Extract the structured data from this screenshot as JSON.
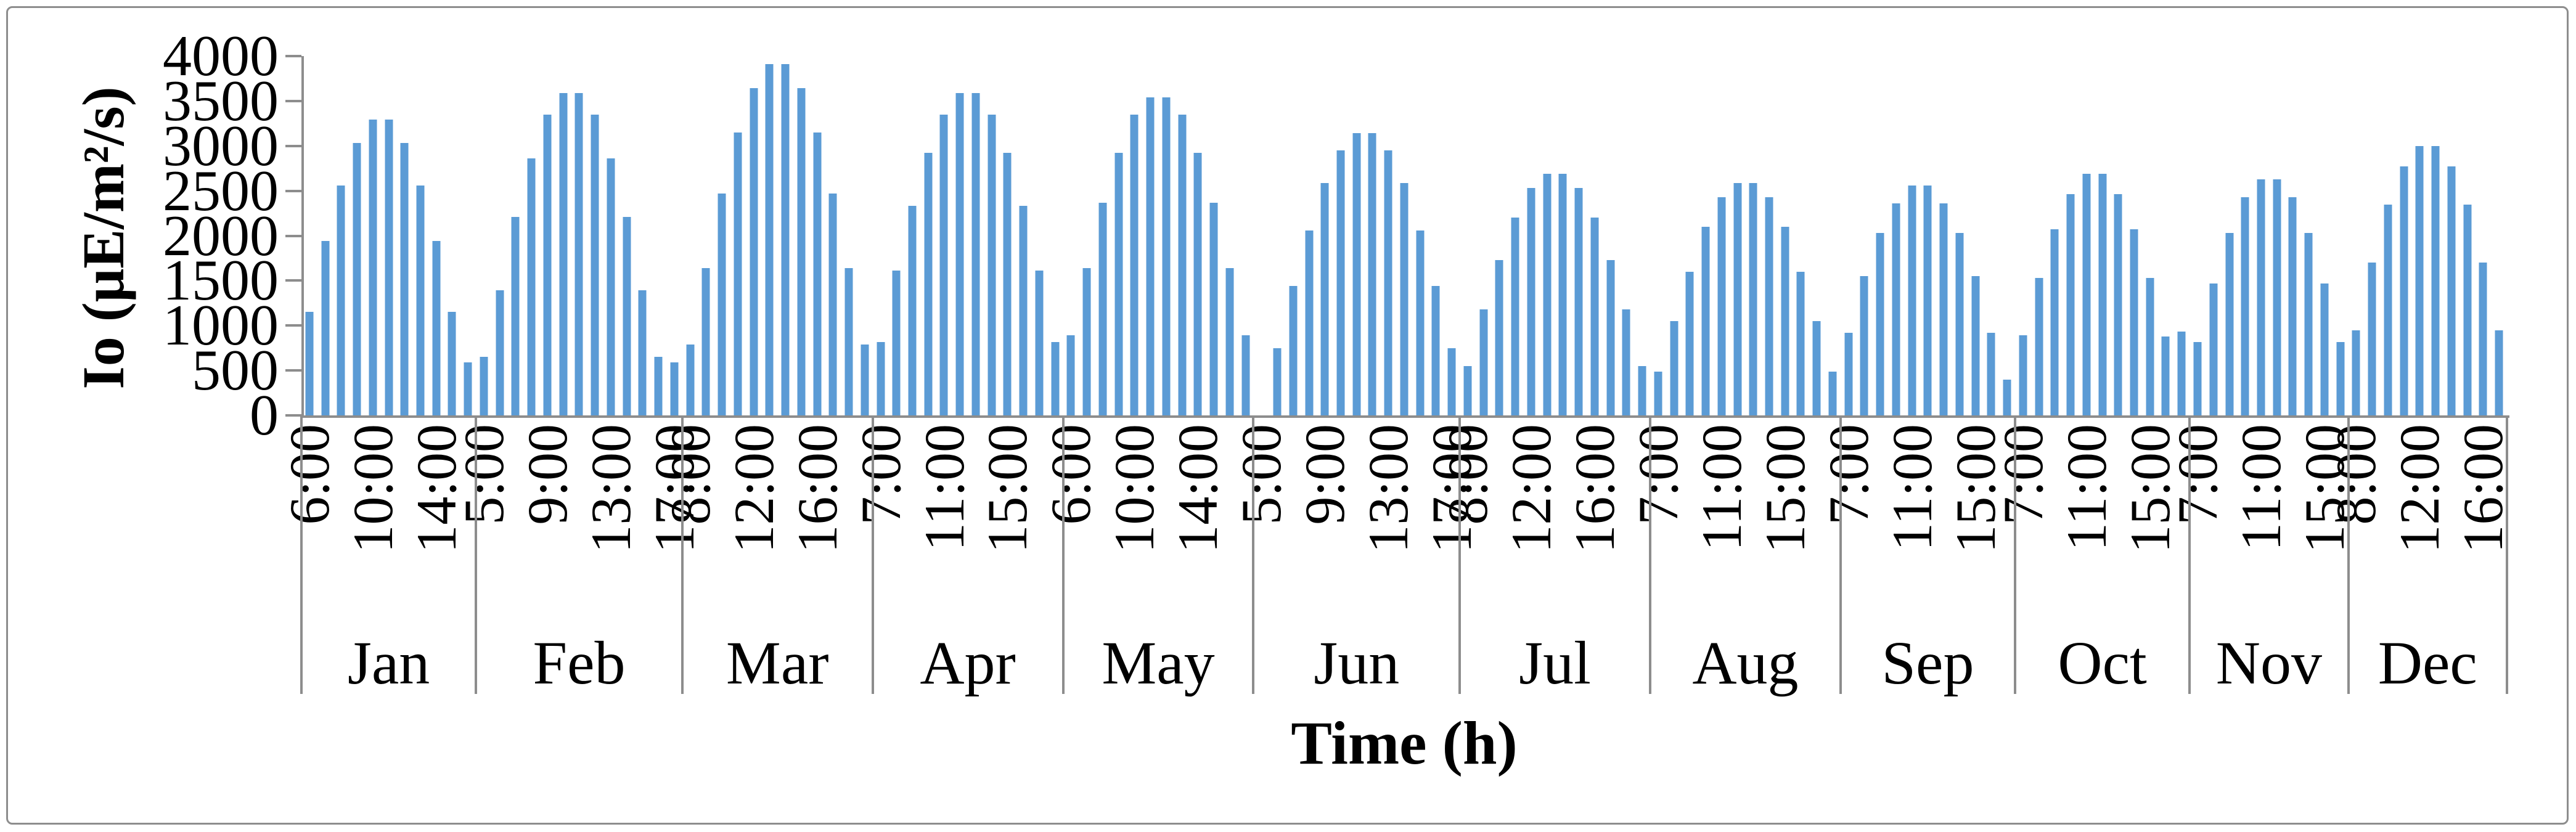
{
  "page": {
    "background": "#ffffff",
    "frame_border_color": "#8d8d8d"
  },
  "chart_data": {
    "type": "bar",
    "title": "",
    "ylabel": "Io (μE/m²/s)",
    "xlabel": "Time (h)",
    "ylim": [
      0,
      4000
    ],
    "ytick_step": 500,
    "ytick_labels": [
      "0",
      "500",
      "1000",
      "1500",
      "2000",
      "2500",
      "3000",
      "3500",
      "4000"
    ],
    "grid": false,
    "legend": false,
    "bar_color": "#5B9BD5",
    "axis_color": "#8d8d8d",
    "months": [
      {
        "name": "Jan",
        "tick_labels": [
          "6:00",
          "10:00",
          "14:00"
        ],
        "hours": [
          "6:00",
          "7:00",
          "8:00",
          "9:00",
          "10:00",
          "11:00",
          "12:00",
          "13:00",
          "14:00",
          "15:00",
          "16:00"
        ],
        "values": [
          1150,
          1940,
          2560,
          3030,
          3290,
          3290,
          3030,
          2560,
          1940,
          1150,
          590
        ]
      },
      {
        "name": "Feb",
        "tick_labels": [
          "5:00",
          "9:00",
          "13:00",
          "17:00"
        ],
        "hours": [
          "5:00",
          "6:00",
          "7:00",
          "8:00",
          "9:00",
          "10:00",
          "11:00",
          "12:00",
          "13:00",
          "14:00",
          "15:00",
          "16:00",
          "17:00"
        ],
        "values": [
          650,
          1390,
          2210,
          2860,
          3350,
          3590,
          3590,
          3350,
          2860,
          2210,
          1390,
          650,
          590
        ]
      },
      {
        "name": "Mar",
        "tick_labels": [
          "8:00",
          "12:00",
          "16:00"
        ],
        "hours": [
          "8:00",
          "9:00",
          "10:00",
          "11:00",
          "12:00",
          "13:00",
          "14:00",
          "15:00",
          "16:00",
          "17:00",
          "18:00",
          "19:00"
        ],
        "values": [
          790,
          1640,
          2470,
          3150,
          3640,
          3910,
          3910,
          3640,
          3150,
          2470,
          1640,
          790
        ]
      },
      {
        "name": "Apr",
        "tick_labels": [
          "7:00",
          "11:00",
          "15:00"
        ],
        "hours": [
          "7:00",
          "8:00",
          "9:00",
          "10:00",
          "11:00",
          "12:00",
          "13:00",
          "14:00",
          "15:00",
          "16:00",
          "17:00",
          "18:00"
        ],
        "values": [
          820,
          1610,
          2330,
          2920,
          3350,
          3590,
          3590,
          3350,
          2920,
          2330,
          1610,
          820
        ]
      },
      {
        "name": "May",
        "tick_labels": [
          "6:00",
          "10:00",
          "14:00"
        ],
        "hours": [
          "6:00",
          "7:00",
          "8:00",
          "9:00",
          "10:00",
          "11:00",
          "12:00",
          "13:00",
          "14:00",
          "15:00",
          "16:00",
          "17:00"
        ],
        "values": [
          890,
          1640,
          2370,
          2920,
          3350,
          3540,
          3540,
          3350,
          2920,
          2370,
          1640,
          890
        ]
      },
      {
        "name": "Jun",
        "tick_labels": [
          "5:00",
          "9:00",
          "13:00",
          "17:00"
        ],
        "hours": [
          "5:00",
          "6:00",
          "7:00",
          "8:00",
          "9:00",
          "10:00",
          "11:00",
          "12:00",
          "13:00",
          "14:00",
          "15:00",
          "16:00",
          "17:00"
        ],
        "values": [
          0,
          750,
          1440,
          2060,
          2590,
          2950,
          3140,
          3140,
          2950,
          2590,
          2060,
          1440,
          750
        ]
      },
      {
        "name": "Jul",
        "tick_labels": [
          "8:00",
          "12:00",
          "16:00"
        ],
        "hours": [
          "8:00",
          "9:00",
          "10:00",
          "11:00",
          "12:00",
          "13:00",
          "14:00",
          "15:00",
          "16:00",
          "17:00",
          "18:00",
          "19:00"
        ],
        "values": [
          550,
          1180,
          1730,
          2200,
          2530,
          2690,
          2690,
          2530,
          2200,
          1730,
          1180,
          550
        ]
      },
      {
        "name": "Aug",
        "tick_labels": [
          "7:00",
          "11:00",
          "15:00"
        ],
        "hours": [
          "7:00",
          "8:00",
          "9:00",
          "10:00",
          "11:00",
          "12:00",
          "13:00",
          "14:00",
          "15:00",
          "16:00",
          "17:00",
          "18:00"
        ],
        "values": [
          490,
          1050,
          1600,
          2100,
          2430,
          2590,
          2590,
          2430,
          2100,
          1600,
          1050,
          490
        ]
      },
      {
        "name": "Sep",
        "tick_labels": [
          "7:00",
          "11:00",
          "15:00"
        ],
        "hours": [
          "7:00",
          "8:00",
          "9:00",
          "10:00",
          "11:00",
          "12:00",
          "13:00",
          "14:00",
          "15:00",
          "16:00",
          "17:00"
        ],
        "values": [
          920,
          1550,
          2030,
          2360,
          2560,
          2560,
          2360,
          2030,
          1550,
          920,
          400
        ]
      },
      {
        "name": "Oct",
        "tick_labels": [
          "7:00",
          "11:00",
          "15:00"
        ],
        "hours": [
          "7:00",
          "8:00",
          "9:00",
          "10:00",
          "11:00",
          "12:00",
          "13:00",
          "14:00",
          "15:00",
          "16:00",
          "17:00"
        ],
        "values": [
          890,
          1530,
          2070,
          2460,
          2690,
          2690,
          2460,
          2070,
          1530,
          880,
          935
        ]
      },
      {
        "name": "Nov",
        "tick_labels": [
          "7:00",
          "11:00",
          "15:00"
        ],
        "hours": [
          "7:00",
          "8:00",
          "9:00",
          "10:00",
          "11:00",
          "12:00",
          "13:00",
          "14:00",
          "15:00",
          "16:00"
        ],
        "values": [
          815,
          1470,
          2030,
          2430,
          2630,
          2630,
          2430,
          2030,
          1470,
          815
        ]
      },
      {
        "name": "Dec",
        "tick_labels": [
          "8:00",
          "12:00",
          "16:00"
        ],
        "hours": [
          "8:00",
          "9:00",
          "10:00",
          "11:00",
          "12:00",
          "13:00",
          "14:00",
          "15:00",
          "16:00",
          "17:00"
        ],
        "values": [
          950,
          1700,
          2350,
          2770,
          3000,
          3000,
          2770,
          2350,
          1700,
          950
        ]
      }
    ]
  }
}
